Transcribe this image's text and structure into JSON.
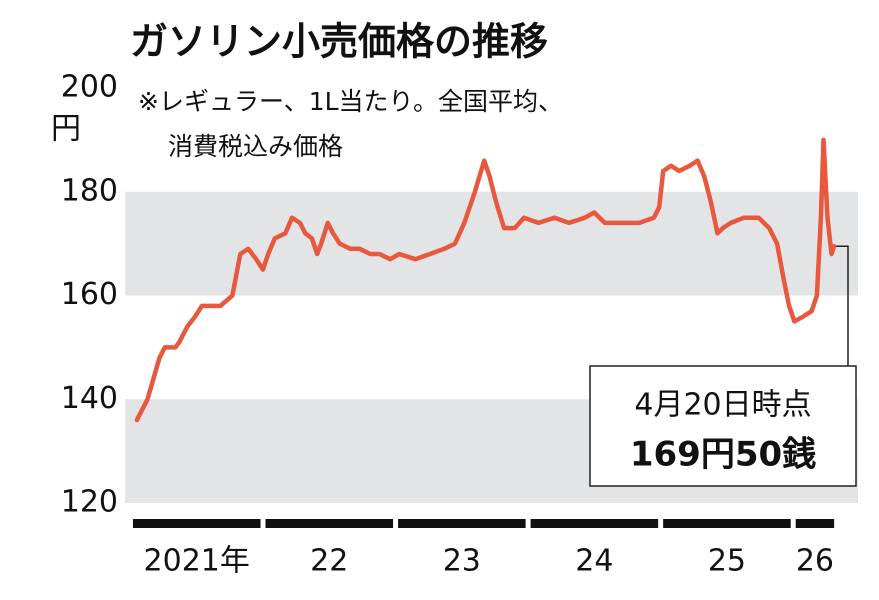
{
  "chart_data": {
    "type": "line",
    "title": "ガソリン小売価格の推移",
    "subtitle": [
      "※レギュラー、1L当たり。全国平均、",
      "消費税込み価格"
    ],
    "y_unit": "円",
    "annotation": [
      "4月20日時点",
      "169円50銭"
    ],
    "xlim": [
      2020.94,
      2026.47
    ],
    "xticks": [
      {
        "value": 2021,
        "label": "2021年"
      },
      {
        "value": 2022,
        "label": "22"
      },
      {
        "value": 2023,
        "label": "23"
      },
      {
        "value": 2024,
        "label": "24"
      },
      {
        "value": 2025,
        "label": "25"
      },
      {
        "value": 2026,
        "label": "26"
      }
    ],
    "ylim": [
      120,
      200
    ],
    "yticks": [
      120,
      140,
      160,
      180,
      200
    ],
    "bands": true,
    "x": [
      2021.03,
      2021.11,
      2021.2,
      2021.24,
      2021.32,
      2021.35,
      2021.41,
      2021.47,
      2021.52,
      2021.6,
      2021.66,
      2021.75,
      2021.81,
      2021.87,
      2021.93,
      2021.98,
      2022.02,
      2022.07,
      2022.15,
      2022.2,
      2022.26,
      2022.3,
      2022.35,
      2022.39,
      2022.42,
      2022.47,
      2022.51,
      2022.56,
      2022.64,
      2022.71,
      2022.79,
      2022.86,
      2022.94,
      2023.01,
      2023.13,
      2023.24,
      2023.35,
      2023.43,
      2023.5,
      2023.58,
      2023.65,
      2023.69,
      2023.74,
      2023.8,
      2023.88,
      2023.95,
      2024.06,
      2024.18,
      2024.29,
      2024.41,
      2024.48,
      2024.56,
      2024.67,
      2024.82,
      2024.93,
      2024.97,
      2025.0,
      2025.06,
      2025.12,
      2025.2,
      2025.26,
      2025.31,
      2025.36,
      2025.41,
      2025.45,
      2025.51,
      2025.61,
      2025.72,
      2025.8,
      2025.86,
      2025.91,
      2025.95,
      2025.99,
      2026.06,
      2026.12,
      2026.16,
      2026.19,
      2026.21,
      2026.24,
      2026.27,
      2026.29
    ],
    "series": [
      {
        "color": "#e8583f",
        "values": [
          136,
          140,
          148,
          150,
          150,
          151,
          154,
          156,
          158,
          158,
          158,
          160,
          168,
          169,
          167,
          165,
          168,
          171,
          172,
          175,
          174,
          172,
          171,
          168,
          170,
          174,
          172,
          170,
          169,
          169,
          168,
          168,
          167,
          168,
          167,
          168,
          169,
          170,
          174,
          180,
          186,
          183,
          178,
          173,
          173,
          175,
          174,
          175,
          174,
          175,
          176,
          174,
          174,
          174,
          175,
          177,
          184,
          185,
          184,
          185,
          186,
          183,
          178,
          172,
          173,
          174,
          175,
          175,
          173,
          170,
          163,
          158,
          155,
          156,
          157,
          160,
          175,
          190,
          175,
          168,
          169.5
        ]
      }
    ]
  }
}
